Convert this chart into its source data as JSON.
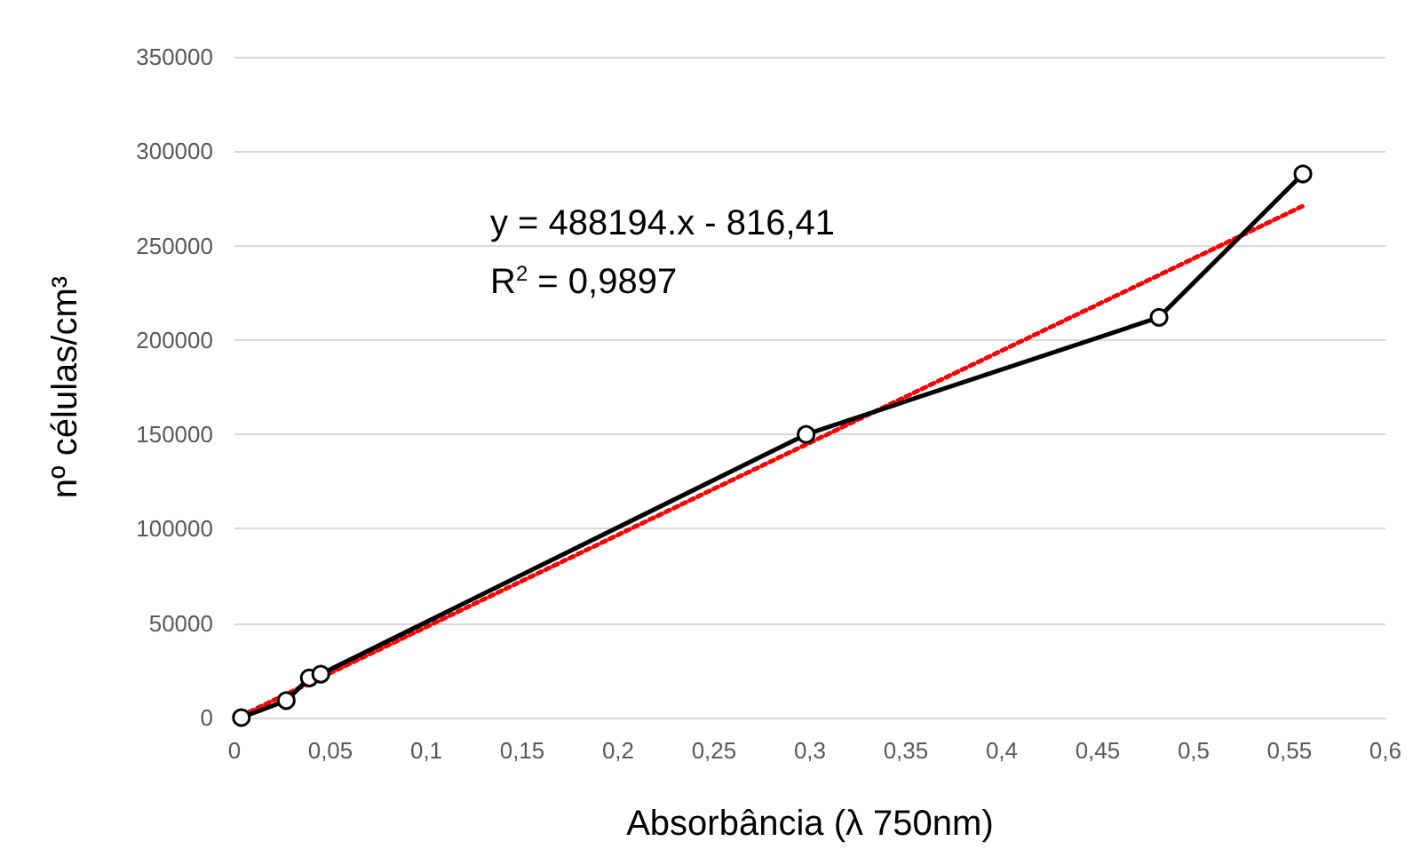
{
  "chart_data": {
    "type": "line",
    "xlabel": "Absorbância (λ 750nm)",
    "ylabel": "nº células/cm³",
    "xlim": [
      0,
      0.6
    ],
    "xticks": [
      0,
      {
        "value": 0.05,
        "label": "0,05"
      },
      {
        "value": 0.1,
        "label": "0,1"
      },
      {
        "value": 0.15,
        "label": "0,15"
      },
      {
        "value": 0.2,
        "label": "0,2"
      },
      {
        "value": 0.25,
        "label": "0,25"
      },
      {
        "value": 0.3,
        "label": "0,3"
      },
      {
        "value": 0.35,
        "label": "0,35"
      },
      {
        "value": 0.4,
        "label": "0,4"
      },
      {
        "value": 0.45,
        "label": "0,45"
      },
      {
        "value": 0.5,
        "label": "0,5"
      },
      {
        "value": 0.55,
        "label": "0,55"
      },
      {
        "value": 0.6,
        "label": "0,6"
      }
    ],
    "ylim": [
      0,
      350000
    ],
    "yticks": [
      0,
      50000,
      100000,
      150000,
      200000,
      250000,
      300000,
      350000
    ],
    "grid": "y",
    "marker": "circle",
    "line_style": "solid",
    "series": [
      {
        "color": "#000000",
        "x": [
          0.0036,
          0.027,
          0.039,
          0.045,
          0.298,
          0.482,
          0.557
        ],
        "values": [
          0,
          9000,
          21000,
          23000,
          150000,
          212000,
          288000
        ]
      },
      {
        "type": "line",
        "color": "#ff0000",
        "marker": "none",
        "line_style": "dotted",
        "x": [
          0.0036,
          0.557
        ],
        "values": [
          1000,
          271000
        ]
      }
    ],
    "annotations": [
      "y = 488194.x - 816,41",
      "R$^{2}$ = 0,9897"
    ]
  }
}
